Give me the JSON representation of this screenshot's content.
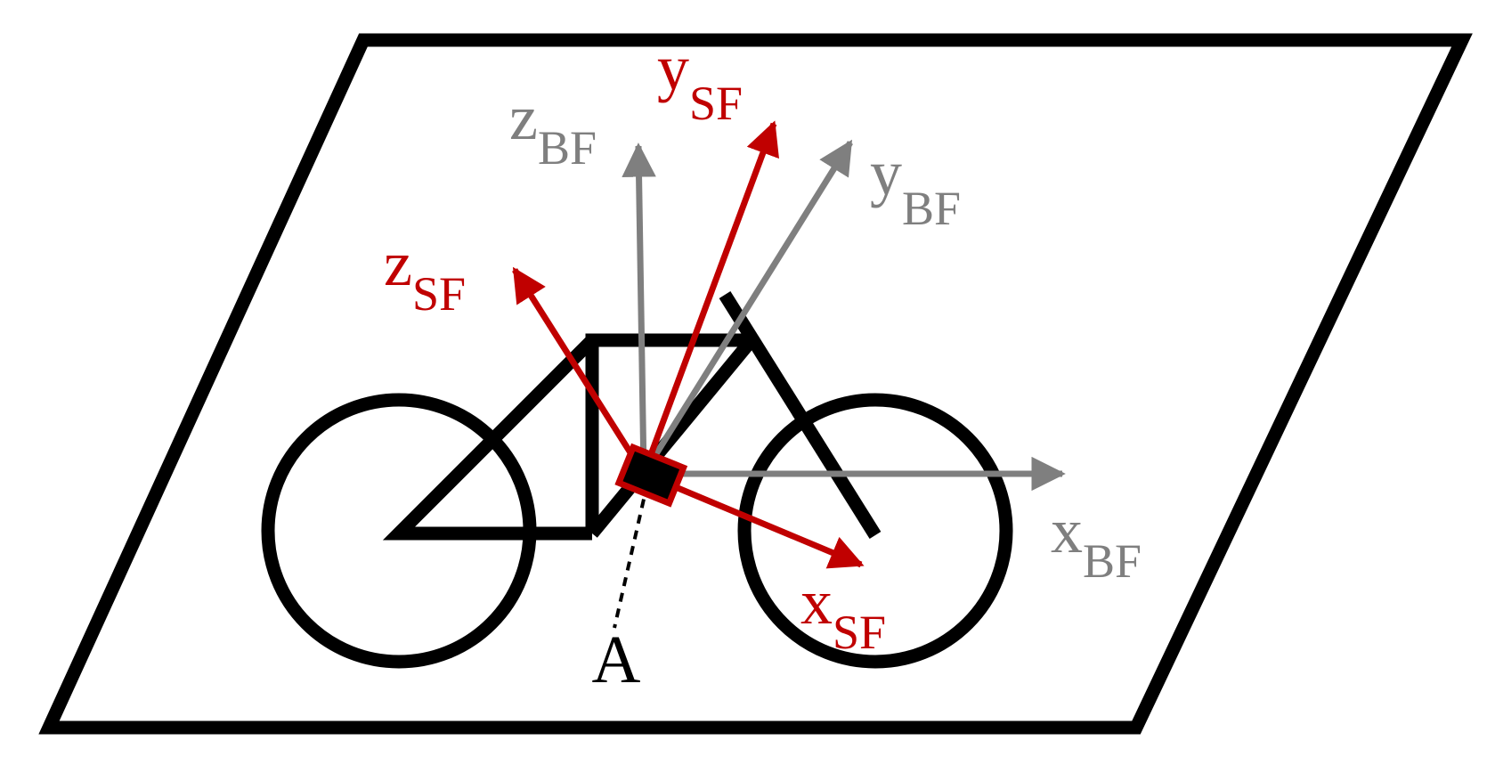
{
  "colors": {
    "outline": "#000000",
    "body_frame": "#7f7f7f",
    "sensor_frame": "#c00000",
    "background": "#ffffff"
  },
  "labels": {
    "x_bf": {
      "main": "x",
      "sub": "BF"
    },
    "y_bf": {
      "main": "y",
      "sub": "BF"
    },
    "z_bf": {
      "main": "z",
      "sub": "BF"
    },
    "x_sf": {
      "main": "x",
      "sub": "SF"
    },
    "y_sf": {
      "main": "y",
      "sub": "SF"
    },
    "z_sf": {
      "main": "z",
      "sub": "SF"
    },
    "point_a": "A"
  }
}
